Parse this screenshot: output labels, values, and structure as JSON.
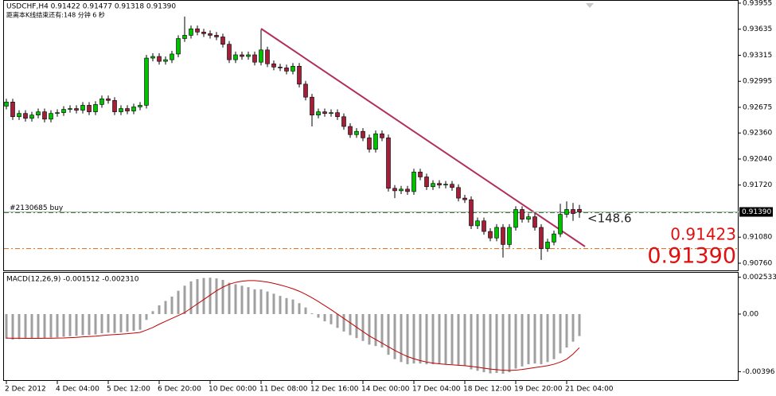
{
  "chart_data": [
    {
      "type": "candlestick",
      "title": "USDCHF,H4  0.91422 0.91477 0.91318 0.91390",
      "subtitle": "距离本K线结束还有:148 分钟 6 秒",
      "categories": [
        "2 Dec 2012",
        null,
        null,
        null,
        null,
        null,
        null,
        null,
        "4 Dec 04:00",
        null,
        null,
        null,
        null,
        null,
        null,
        null,
        "5 Dec 12:00",
        null,
        null,
        null,
        null,
        null,
        null,
        null,
        "6 Dec 20:00",
        null,
        null,
        null,
        null,
        null,
        null,
        null,
        "10 Dec 00:00",
        null,
        null,
        null,
        null,
        null,
        null,
        null,
        "11 Dec 08:00",
        null,
        null,
        null,
        null,
        null,
        null,
        null,
        "12 Dec 16:00",
        null,
        null,
        null,
        null,
        null,
        null,
        null,
        "14 Dec 00:00",
        null,
        null,
        null,
        null,
        null,
        null,
        null,
        "17 Dec 04:00",
        null,
        null,
        null,
        null,
        null,
        null,
        null,
        "18 Dec 12:00",
        null,
        null,
        null,
        null,
        null,
        null,
        null,
        "19 Dec 20:00",
        null,
        null,
        null,
        null,
        null,
        null,
        null,
        "21 Dec 04:00",
        null,
        null
      ],
      "ohlc": [
        [
          0.9269,
          0.9278,
          0.9265,
          0.9274
        ],
        [
          0.9274,
          0.9278,
          0.9252,
          0.9256
        ],
        [
          0.9256,
          0.9264,
          0.9252,
          0.926
        ],
        [
          0.926,
          0.9264,
          0.925,
          0.9254
        ],
        [
          0.9254,
          0.9262,
          0.925,
          0.9258
        ],
        [
          0.9258,
          0.9266,
          0.9254,
          0.9262
        ],
        [
          0.9262,
          0.9266,
          0.9249,
          0.9253
        ],
        [
          0.9253,
          0.9264,
          0.9249,
          0.926
        ],
        [
          0.926,
          0.9265,
          0.9256,
          0.9261
        ],
        [
          0.9261,
          0.9269,
          0.9257,
          0.9265
        ],
        [
          0.9265,
          0.927,
          0.9261,
          0.9266
        ],
        [
          0.9266,
          0.927,
          0.926,
          0.9264
        ],
        [
          0.9264,
          0.9274,
          0.926,
          0.927
        ],
        [
          0.927,
          0.9274,
          0.9258,
          0.9262
        ],
        [
          0.9262,
          0.9275,
          0.9258,
          0.9271
        ],
        [
          0.9271,
          0.9282,
          0.9267,
          0.9278
        ],
        [
          0.9278,
          0.9282,
          0.9272,
          0.9276
        ],
        [
          0.9276,
          0.928,
          0.9258,
          0.9262
        ],
        [
          0.9262,
          0.927,
          0.9258,
          0.9266
        ],
        [
          0.9266,
          0.927,
          0.9259,
          0.9263
        ],
        [
          0.9263,
          0.9272,
          0.9259,
          0.9268
        ],
        [
          0.9268,
          0.9274,
          0.9264,
          0.927
        ],
        [
          0.927,
          0.9332,
          0.9266,
          0.9328
        ],
        [
          0.9328,
          0.9334,
          0.9324,
          0.933
        ],
        [
          0.933,
          0.9334,
          0.932,
          0.9324
        ],
        [
          0.9324,
          0.933,
          0.932,
          0.9326
        ],
        [
          0.9326,
          0.9337,
          0.9322,
          0.9333
        ],
        [
          0.9333,
          0.9356,
          0.9329,
          0.9352
        ],
        [
          0.9352,
          0.9379,
          0.9348,
          0.9356
        ],
        [
          0.9356,
          0.9368,
          0.9352,
          0.9364
        ],
        [
          0.9364,
          0.9368,
          0.9356,
          0.936
        ],
        [
          0.936,
          0.9364,
          0.9354,
          0.9358
        ],
        [
          0.9358,
          0.9362,
          0.9352,
          0.9356
        ],
        [
          0.9356,
          0.936,
          0.935,
          0.9354
        ],
        [
          0.9354,
          0.9358,
          0.9341,
          0.9345
        ],
        [
          0.9345,
          0.9349,
          0.9322,
          0.9326
        ],
        [
          0.9326,
          0.9336,
          0.9322,
          0.9332
        ],
        [
          0.9332,
          0.9336,
          0.9326,
          0.933
        ],
        [
          0.933,
          0.9336,
          0.9326,
          0.9332
        ],
        [
          0.9332,
          0.9336,
          0.9319,
          0.9323
        ],
        [
          0.9323,
          0.9363,
          0.9319,
          0.9338
        ],
        [
          0.9338,
          0.9342,
          0.9317,
          0.9321
        ],
        [
          0.9321,
          0.9325,
          0.9313,
          0.9317
        ],
        [
          0.9317,
          0.9321,
          0.9312,
          0.9316
        ],
        [
          0.9316,
          0.932,
          0.9308,
          0.9312
        ],
        [
          0.9312,
          0.9322,
          0.9308,
          0.9318
        ],
        [
          0.9318,
          0.9322,
          0.9292,
          0.9296
        ],
        [
          0.9296,
          0.93,
          0.9276,
          0.928
        ],
        [
          0.928,
          0.9284,
          0.9244,
          0.9258
        ],
        [
          0.9258,
          0.9266,
          0.9254,
          0.9262
        ],
        [
          0.9262,
          0.9266,
          0.9256,
          0.926
        ],
        [
          0.926,
          0.9265,
          0.9256,
          0.9261
        ],
        [
          0.9261,
          0.9265,
          0.9252,
          0.9256
        ],
        [
          0.9256,
          0.926,
          0.924,
          0.9244
        ],
        [
          0.9244,
          0.9248,
          0.923,
          0.9234
        ],
        [
          0.9234,
          0.9242,
          0.923,
          0.9238
        ],
        [
          0.9238,
          0.9242,
          0.9226,
          0.923
        ],
        [
          0.923,
          0.9234,
          0.9212,
          0.9216
        ],
        [
          0.9216,
          0.9239,
          0.9212,
          0.9235
        ],
        [
          0.9235,
          0.9239,
          0.9226,
          0.923
        ],
        [
          0.923,
          0.9234,
          0.9164,
          0.9168
        ],
        [
          0.9168,
          0.9172,
          0.9156,
          0.9165
        ],
        [
          0.9165,
          0.9171,
          0.9161,
          0.9167
        ],
        [
          0.9167,
          0.9171,
          0.916,
          0.9164
        ],
        [
          0.9164,
          0.9192,
          0.916,
          0.9188
        ],
        [
          0.9188,
          0.9192,
          0.9178,
          0.9182
        ],
        [
          0.9182,
          0.9186,
          0.9166,
          0.917
        ],
        [
          0.917,
          0.9178,
          0.9166,
          0.9174
        ],
        [
          0.9174,
          0.9178,
          0.9168,
          0.9172
        ],
        [
          0.9172,
          0.9177,
          0.9168,
          0.9173
        ],
        [
          0.9173,
          0.9177,
          0.9165,
          0.9169
        ],
        [
          0.9169,
          0.9173,
          0.9152,
          0.9156
        ],
        [
          0.9156,
          0.916,
          0.915,
          0.9154
        ],
        [
          0.9154,
          0.9158,
          0.9118,
          0.9122
        ],
        [
          0.9122,
          0.9132,
          0.9118,
          0.9128
        ],
        [
          0.9128,
          0.9132,
          0.9111,
          0.9115
        ],
        [
          0.9115,
          0.9119,
          0.9103,
          0.9107
        ],
        [
          0.9107,
          0.9124,
          0.9103,
          0.912
        ],
        [
          0.912,
          0.9124,
          0.9083,
          0.9099
        ],
        [
          0.9099,
          0.9124,
          0.9095,
          0.912
        ],
        [
          0.912,
          0.9146,
          0.9116,
          0.9142
        ],
        [
          0.9142,
          0.9146,
          0.9126,
          0.913
        ],
        [
          0.913,
          0.9137,
          0.9126,
          0.9133
        ],
        [
          0.9133,
          0.9137,
          0.9116,
          0.912
        ],
        [
          0.912,
          0.9124,
          0.908,
          0.9094
        ],
        [
          0.9094,
          0.9106,
          0.909,
          0.9102
        ],
        [
          0.9102,
          0.9116,
          0.9098,
          0.9112
        ],
        [
          0.9112,
          0.9149,
          0.9108,
          0.9136
        ],
        [
          0.9136,
          0.9152,
          0.9132,
          0.9142
        ],
        [
          0.9142,
          0.915,
          0.9128,
          0.9137
        ],
        [
          0.91422,
          0.91477,
          0.91318,
          0.9139
        ]
      ],
      "up_color": "#00c000",
      "down_color": "#a0203a",
      "ylim": [
        0.90672,
        0.93984
      ],
      "yticks": [
        0.93955,
        0.93635,
        0.93315,
        0.92995,
        0.92675,
        {
          "value": 0.9236,
          "label": "0.92360"
        },
        {
          "value": 0.9204,
          "label": "0.92040"
        },
        {
          "value": 0.9172,
          "label": "0.91720"
        },
        {
          "value": 0.9108,
          "label": "0.91080"
        },
        {
          "value": 0.9076,
          "label": "0.90760"
        }
      ],
      "price_line": {
        "value": 0.9139,
        "label": "0.91390"
      },
      "levels": [
        {
          "value": 0.9138,
          "color": "#3a8a3a",
          "label": "#2130685 buy"
        },
        {
          "value": 0.9094,
          "color": "#d2691e"
        }
      ],
      "annotations": [
        "<148.6",
        "0.91423",
        "0.91390"
      ]
    },
    {
      "type": "macd",
      "title": "MACD(12,26,9) -0.001512 -0.002310",
      "histogram": [
        -0.0017,
        -0.00175,
        -0.00172,
        -0.0017,
        -0.00168,
        -0.00165,
        -0.00166,
        -0.00162,
        -0.0016,
        -0.00156,
        -0.00152,
        -0.0015,
        -0.00145,
        -0.00145,
        -0.0014,
        -0.00132,
        -0.00128,
        -0.0013,
        -0.00126,
        -0.00122,
        -0.00115,
        -0.00108,
        -0.0004,
        0.0002,
        0.0006,
        0.0009,
        0.0012,
        0.0016,
        0.00195,
        0.00225,
        0.0024,
        0.00248,
        0.0025,
        0.00245,
        0.00235,
        0.00215,
        0.00205,
        0.00195,
        0.00185,
        0.0017,
        0.0017,
        0.00155,
        0.0014,
        0.00125,
        0.0011,
        0.001,
        0.00075,
        0.00045,
        5e-05,
        -0.00025,
        -0.0005,
        -0.0007,
        -0.00095,
        -0.0012,
        -0.00145,
        -0.00165,
        -0.00185,
        -0.0021,
        -0.0022,
        -0.0023,
        -0.0028,
        -0.0031,
        -0.0033,
        -0.00345,
        -0.0034,
        -0.0034,
        -0.00345,
        -0.00345,
        -0.00345,
        -0.00345,
        -0.00345,
        -0.0035,
        -0.00355,
        -0.0038,
        -0.0039,
        -0.004,
        -0.00408,
        -0.00405,
        -0.0041,
        -0.004,
        -0.00375,
        -0.0036,
        -0.00345,
        -0.0034,
        -0.00345,
        -0.0033,
        -0.0031,
        -0.0027,
        -0.0023,
        -0.0019,
        -0.001512
      ],
      "signal": [
        -0.00165,
        -0.00166,
        -0.00166,
        -0.00167,
        -0.00167,
        -0.00167,
        -0.00166,
        -0.00166,
        -0.00165,
        -0.00164,
        -0.00162,
        -0.0016,
        -0.00157,
        -0.00155,
        -0.00152,
        -0.00148,
        -0.00144,
        -0.00141,
        -0.00138,
        -0.00135,
        -0.00131,
        -0.00126,
        -0.0011,
        -0.00092,
        -0.0007,
        -0.0005,
        -0.0003,
        -0.0001,
        0.0001,
        0.0004,
        0.0007,
        0.001,
        0.0013,
        0.0016,
        0.00185,
        0.00205,
        0.00218,
        0.00226,
        0.0023,
        0.0023,
        0.00226,
        0.0022,
        0.00211,
        0.002,
        0.00188,
        0.00174,
        0.00157,
        0.00136,
        0.00112,
        0.00086,
        0.00058,
        0.0003,
        0.0,
        -0.0003,
        -0.0006,
        -0.0009,
        -0.0012,
        -0.0015,
        -0.00175,
        -0.002,
        -0.00225,
        -0.0025,
        -0.00272,
        -0.00292,
        -0.00307,
        -0.0032,
        -0.0033,
        -0.00337,
        -0.00342,
        -0.00346,
        -0.00349,
        -0.00352,
        -0.00355,
        -0.0036,
        -0.00365,
        -0.00372,
        -0.00378,
        -0.00382,
        -0.00386,
        -0.00388,
        -0.00386,
        -0.00381,
        -0.00375,
        -0.00368,
        -0.00362,
        -0.00355,
        -0.00345,
        -0.0033,
        -0.0031,
        -0.00275,
        -0.00231
      ],
      "histogram_color": "#a0a0a0",
      "signal_color": "#c00000",
      "ylim": [
        -0.00454,
        0.00284
      ],
      "yticks": [
        0.002533,
        {
          "value": 0,
          "label": "0.00"
        },
        -0.00396
      ]
    }
  ]
}
